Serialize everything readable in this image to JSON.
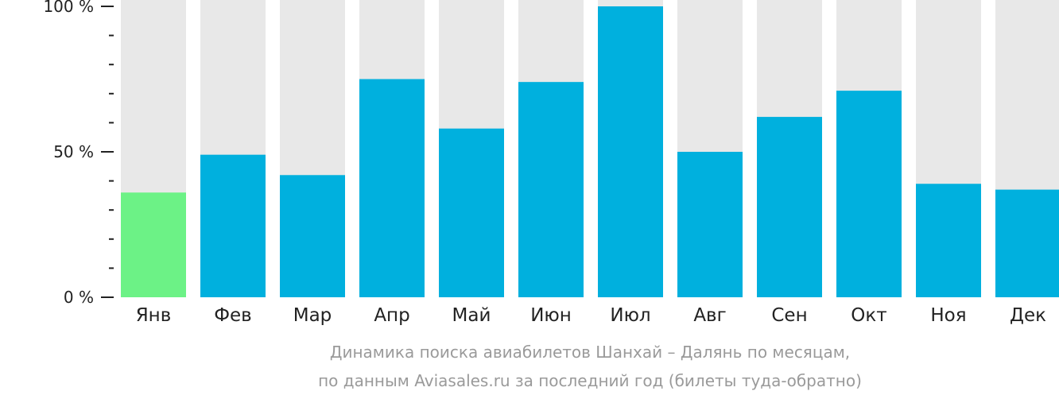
{
  "chart_data": {
    "type": "bar",
    "categories": [
      "Янв",
      "Фев",
      "Мар",
      "Апр",
      "Май",
      "Июн",
      "Июл",
      "Авг",
      "Сен",
      "Окт",
      "Ноя",
      "Дек"
    ],
    "values": [
      36,
      49,
      42,
      75,
      58,
      74,
      100,
      50,
      62,
      71,
      39,
      37
    ],
    "highlight_index": 0,
    "ylim": [
      0,
      100
    ],
    "y_major_ticks": [
      {
        "value": 0,
        "label": "0 %"
      },
      {
        "value": 50,
        "label": "50 %"
      },
      {
        "value": 100,
        "label": "100 %"
      }
    ],
    "y_minor_tick_step": 10,
    "grid": false,
    "colors": {
      "bar": "#00b0de",
      "highlight": "#6cf286",
      "track": "#e8e8e8",
      "axis": "#222222"
    }
  },
  "caption": {
    "line1": "Динамика поиска авиабилетов Шанхай – Далянь по месяцам,",
    "line2": "по данным Aviasales.ru за последний год (билеты туда-обратно)"
  }
}
